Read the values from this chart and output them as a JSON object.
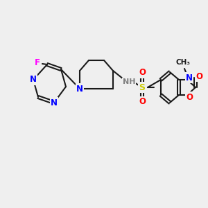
{
  "bg_color": "#efefef",
  "bond_color": "#1a1a1a",
  "bond_width": 1.5,
  "atom_colors": {
    "N": "#0000ff",
    "O": "#ff0000",
    "F": "#ff00ff",
    "S": "#cccc00",
    "H": "#808080",
    "C": "#1a1a1a"
  },
  "font_size": 8.5
}
